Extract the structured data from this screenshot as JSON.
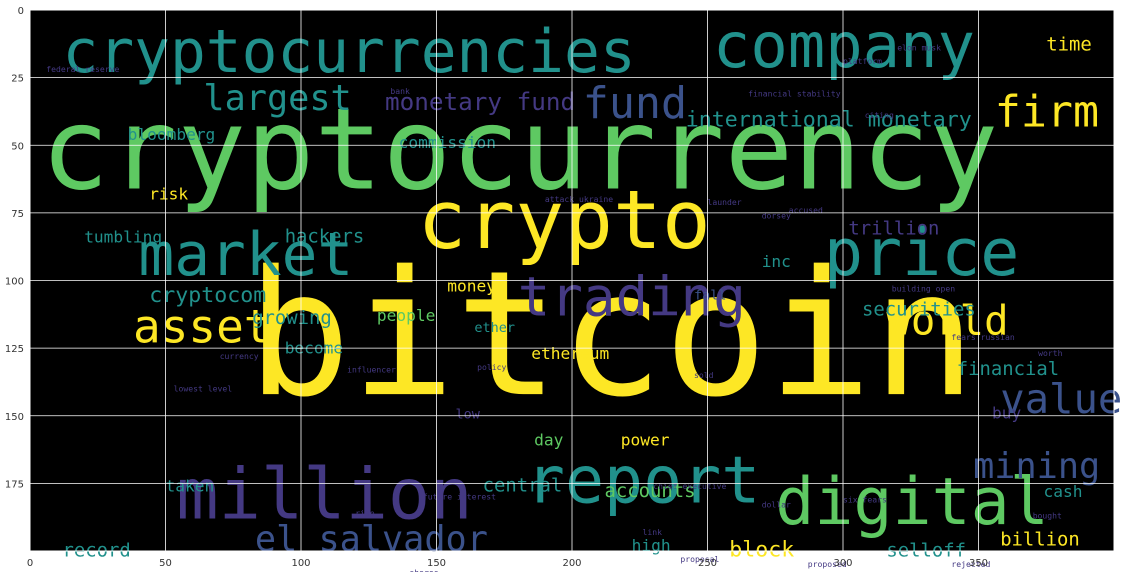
{
  "figure": {
    "kind": "word cloud",
    "background": "#000000",
    "frame_color": "#ffffff",
    "grid": true,
    "colormap": [
      "#440154",
      "#3b528b",
      "#21918c",
      "#5ec962",
      "#fde725"
    ]
  },
  "axes": {
    "xlim": [
      0,
      400
    ],
    "ylim": [
      200,
      0
    ],
    "x_ticks": [
      0,
      50,
      100,
      150,
      200,
      250,
      300,
      350
    ],
    "y_ticks": [
      0,
      25,
      50,
      75,
      100,
      125,
      150,
      175
    ],
    "x_tick_labels": [
      "0",
      "50",
      "100",
      "150",
      "200",
      "250",
      "300",
      "350"
    ],
    "y_tick_labels": [
      "0",
      "25",
      "50",
      "75",
      "100",
      "125",
      "150",
      "175"
    ]
  },
  "words": [
    {
      "text": "bitcoin",
      "size": 64,
      "x": 80,
      "y": 142,
      "color": "#fde725"
    },
    {
      "text": "cryptocurrency",
      "size": 42,
      "x": 4,
      "y": 66,
      "color": "#5ec962"
    },
    {
      "text": "cryptocurrencies",
      "size": 22,
      "x": 12,
      "y": 23,
      "color": "#21918c"
    },
    {
      "text": "company",
      "size": 23,
      "x": 252,
      "y": 21,
      "color": "#21918c"
    },
    {
      "text": "crypto",
      "size": 30,
      "x": 143,
      "y": 88,
      "color": "#fde725"
    },
    {
      "text": "market",
      "size": 22,
      "x": 40,
      "y": 98,
      "color": "#21918c"
    },
    {
      "text": "price",
      "size": 24,
      "x": 293,
      "y": 98,
      "color": "#21918c"
    },
    {
      "text": "trading",
      "size": 20,
      "x": 180,
      "y": 113,
      "color": "#443983"
    },
    {
      "text": "digital",
      "size": 24,
      "x": 275,
      "y": 190,
      "color": "#5ec962"
    },
    {
      "text": "report",
      "size": 24,
      "x": 183,
      "y": 182,
      "color": "#21918c"
    },
    {
      "text": "million",
      "size": 26,
      "x": 54,
      "y": 188,
      "color": "#443983"
    },
    {
      "text": "el salvador",
      "size": 13,
      "x": 83,
      "y": 200,
      "color": "#3b528b"
    },
    {
      "text": "world",
      "size": 15,
      "x": 316,
      "y": 120,
      "color": "#fde725"
    },
    {
      "text": "asset",
      "size": 17,
      "x": 38,
      "y": 123,
      "color": "#fde725"
    },
    {
      "text": "fund",
      "size": 16,
      "x": 204,
      "y": 40,
      "color": "#3b528b"
    },
    {
      "text": "firm",
      "size": 16,
      "x": 356,
      "y": 43,
      "color": "#fde725"
    },
    {
      "text": "largest",
      "size": 13,
      "x": 64,
      "y": 37,
      "color": "#21918c"
    },
    {
      "text": "monetary fund",
      "size": 9,
      "x": 131,
      "y": 37,
      "color": "#443983"
    },
    {
      "text": "international monetary",
      "size": 8,
      "x": 242,
      "y": 43,
      "color": "#21918c"
    },
    {
      "text": "bloomberg",
      "size": 6,
      "x": 36,
      "y": 48,
      "color": "#21918c"
    },
    {
      "text": "commission",
      "size": 6,
      "x": 136,
      "y": 51,
      "color": "#21918c"
    },
    {
      "text": "time",
      "size": 7,
      "x": 375,
      "y": 15,
      "color": "#fde725"
    },
    {
      "text": "risk",
      "size": 6,
      "x": 44,
      "y": 70,
      "color": "#fde725"
    },
    {
      "text": "tumbling",
      "size": 6,
      "x": 20,
      "y": 86,
      "color": "#21918c"
    },
    {
      "text": "hackers",
      "size": 7,
      "x": 94,
      "y": 86,
      "color": "#21918c"
    },
    {
      "text": "trillion",
      "size": 7,
      "x": 302,
      "y": 83,
      "color": "#443983"
    },
    {
      "text": "inc",
      "size": 6,
      "x": 270,
      "y": 95,
      "color": "#21918c"
    },
    {
      "text": "cryptocom",
      "size": 8,
      "x": 44,
      "y": 108,
      "color": "#21918c"
    },
    {
      "text": "growing",
      "size": 7,
      "x": 82,
      "y": 116,
      "color": "#21918c"
    },
    {
      "text": "people",
      "size": 6,
      "x": 128,
      "y": 115,
      "color": "#5ec962"
    },
    {
      "text": "money",
      "size": 6,
      "x": 154,
      "y": 104,
      "color": "#fde725"
    },
    {
      "text": "fall",
      "size": 5,
      "x": 245,
      "y": 107,
      "color": "#3b528b"
    },
    {
      "text": "ether",
      "size": 5,
      "x": 164,
      "y": 119,
      "color": "#21918c"
    },
    {
      "text": "securities",
      "size": 7,
      "x": 307,
      "y": 113,
      "color": "#21918c"
    },
    {
      "text": "become",
      "size": 6,
      "x": 94,
      "y": 127,
      "color": "#21918c"
    },
    {
      "text": "ethereum",
      "size": 6,
      "x": 185,
      "y": 129,
      "color": "#fde725"
    },
    {
      "text": "financial",
      "size": 7,
      "x": 342,
      "y": 135,
      "color": "#21918c"
    },
    {
      "text": "value",
      "size": 15,
      "x": 358,
      "y": 149,
      "color": "#3b528b"
    },
    {
      "text": "buy",
      "size": 6,
      "x": 355,
      "y": 151,
      "color": "#443983"
    },
    {
      "text": "low",
      "size": 5,
      "x": 157,
      "y": 151,
      "color": "#443983"
    },
    {
      "text": "day",
      "size": 6,
      "x": 186,
      "y": 161,
      "color": "#5ec962"
    },
    {
      "text": "power",
      "size": 6,
      "x": 218,
      "y": 161,
      "color": "#fde725"
    },
    {
      "text": "mining",
      "size": 13,
      "x": 348,
      "y": 173,
      "color": "#3b528b"
    },
    {
      "text": "taken",
      "size": 6,
      "x": 50,
      "y": 178,
      "color": "#21918c"
    },
    {
      "text": "central",
      "size": 7,
      "x": 167,
      "y": 178,
      "color": "#21918c"
    },
    {
      "text": "accounts",
      "size": 7,
      "x": 212,
      "y": 180,
      "color": "#5ec962"
    },
    {
      "text": "cash",
      "size": 6,
      "x": 374,
      "y": 180,
      "color": "#21918c"
    },
    {
      "text": "record",
      "size": 7,
      "x": 12,
      "y": 202,
      "color": "#21918c"
    },
    {
      "text": "high",
      "size": 6,
      "x": 222,
      "y": 200,
      "color": "#21918c"
    },
    {
      "text": "block",
      "size": 8,
      "x": 258,
      "y": 202,
      "color": "#fde725"
    },
    {
      "text": "selloff",
      "size": 7,
      "x": 316,
      "y": 202,
      "color": "#21918c"
    },
    {
      "text": "billion",
      "size": 7,
      "x": 358,
      "y": 198,
      "color": "#fde725"
    },
    {
      "text": "federal reserve",
      "size": 3,
      "x": 6,
      "y": 23,
      "color": "#443983"
    },
    {
      "text": "bank",
      "size": 3,
      "x": 133,
      "y": 31,
      "color": "#443983"
    },
    {
      "text": "platform",
      "size": 3,
      "x": 300,
      "y": 20,
      "color": "#443983"
    },
    {
      "text": "elon musk",
      "size": 3,
      "x": 320,
      "y": 15,
      "color": "#443983"
    },
    {
      "text": "financial stability",
      "size": 3,
      "x": 265,
      "y": 32,
      "color": "#443983"
    },
    {
      "text": "citing",
      "size": 3,
      "x": 308,
      "y": 40,
      "color": "#443983"
    },
    {
      "text": "attack ukraine",
      "size": 3,
      "x": 190,
      "y": 71,
      "color": "#443983"
    },
    {
      "text": "launder",
      "size": 3,
      "x": 250,
      "y": 72,
      "color": "#443983"
    },
    {
      "text": "accused",
      "size": 3,
      "x": 280,
      "y": 75,
      "color": "#443983"
    },
    {
      "text": "dorsey",
      "size": 3,
      "x": 270,
      "y": 77,
      "color": "#443983"
    },
    {
      "text": "policy",
      "size": 3,
      "x": 165,
      "y": 133,
      "color": "#443983"
    },
    {
      "text": "influencer",
      "size": 3,
      "x": 117,
      "y": 134,
      "color": "#443983"
    },
    {
      "text": "building open",
      "size": 3,
      "x": 318,
      "y": 104,
      "color": "#443983"
    },
    {
      "text": "fears russian",
      "size": 3,
      "x": 340,
      "y": 122,
      "color": "#443983"
    },
    {
      "text": "worth",
      "size": 3,
      "x": 372,
      "y": 128,
      "color": "#443983"
    },
    {
      "text": "six fears",
      "size": 3,
      "x": 300,
      "y": 182,
      "color": "#443983"
    },
    {
      "text": "chief executive",
      "size": 3,
      "x": 230,
      "y": 177,
      "color": "#443983"
    },
    {
      "text": "future interest",
      "size": 3,
      "x": 145,
      "y": 181,
      "color": "#443983"
    },
    {
      "text": "proposal",
      "size": 3,
      "x": 240,
      "y": 204,
      "color": "#443983"
    },
    {
      "text": "proposed",
      "size": 3,
      "x": 287,
      "y": 206,
      "color": "#443983"
    },
    {
      "text": "rejected",
      "size": 3,
      "x": 340,
      "y": 206,
      "color": "#443983"
    },
    {
      "text": "shares",
      "size": 3,
      "x": 140,
      "y": 209,
      "color": "#443983"
    },
    {
      "text": "currency",
      "size": 3,
      "x": 70,
      "y": 129,
      "color": "#443983"
    },
    {
      "text": "lowest level",
      "size": 3,
      "x": 53,
      "y": 141,
      "color": "#443983"
    },
    {
      "text": "dollar",
      "size": 3,
      "x": 270,
      "y": 184,
      "color": "#443983"
    },
    {
      "text": "link",
      "size": 3,
      "x": 226,
      "y": 194,
      "color": "#443983"
    },
    {
      "text": "sold",
      "size": 3,
      "x": 245,
      "y": 136,
      "color": "#443983"
    },
    {
      "text": "bought",
      "size": 3,
      "x": 370,
      "y": 188,
      "color": "#443983"
    },
    {
      "text": "rise",
      "size": 3,
      "x": 120,
      "y": 187,
      "color": "#443983"
    }
  ]
}
